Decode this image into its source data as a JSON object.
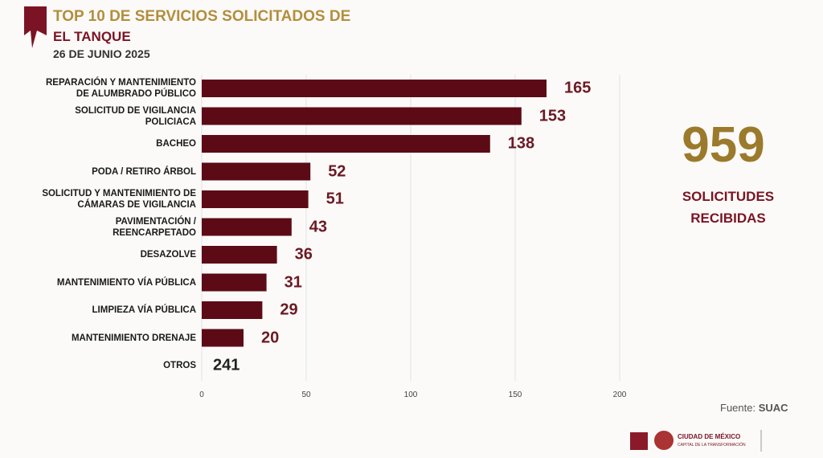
{
  "chart_data": {
    "type": "barh",
    "title": "TOP 10 DE SERVICIOS SOLICITADOS DE",
    "title_place": "EL TANQUE",
    "subtitle": "26 DE JUNIO 2025",
    "categories": [
      "REPARACIÓN Y MANTENIMIENTO\nDE ALUMBRADO PÚBLICO",
      "SOLICITUD DE VIGILANCIA\nPOLICIACA",
      "BACHEO",
      "PODA / RETIRO ÁRBOL",
      "SOLICITUD Y MANTENIMIENTO DE\nCÁMARAS DE VIGILANCIA",
      "PAVIMENTACIÓN /\nREENCARPETADO",
      "DESAZOLVE",
      "MANTENIMIENTO VÍA PÚBLICA",
      "LIMPIEZA VÍA PÚBLICA",
      "MANTENIMIENTO DRENAJE"
    ],
    "values": [
      165,
      153,
      138,
      52,
      51,
      43,
      36,
      31,
      29,
      20
    ],
    "color": "#5c0b16",
    "others": {
      "label": "OTROS",
      "value": 241
    },
    "xlim": [
      0,
      200
    ],
    "xticks": [
      0,
      50,
      100,
      150,
      200
    ],
    "grid": true,
    "total": 959,
    "total_label": "SOLICITUDES\nRECIBIDAS",
    "source_prefix": "Fuente:",
    "source": "SUAC",
    "footer": [
      "CIUDAD DE MÉXICO",
      "CAPITAL DE LA TRANSFORMACIÓN"
    ]
  }
}
